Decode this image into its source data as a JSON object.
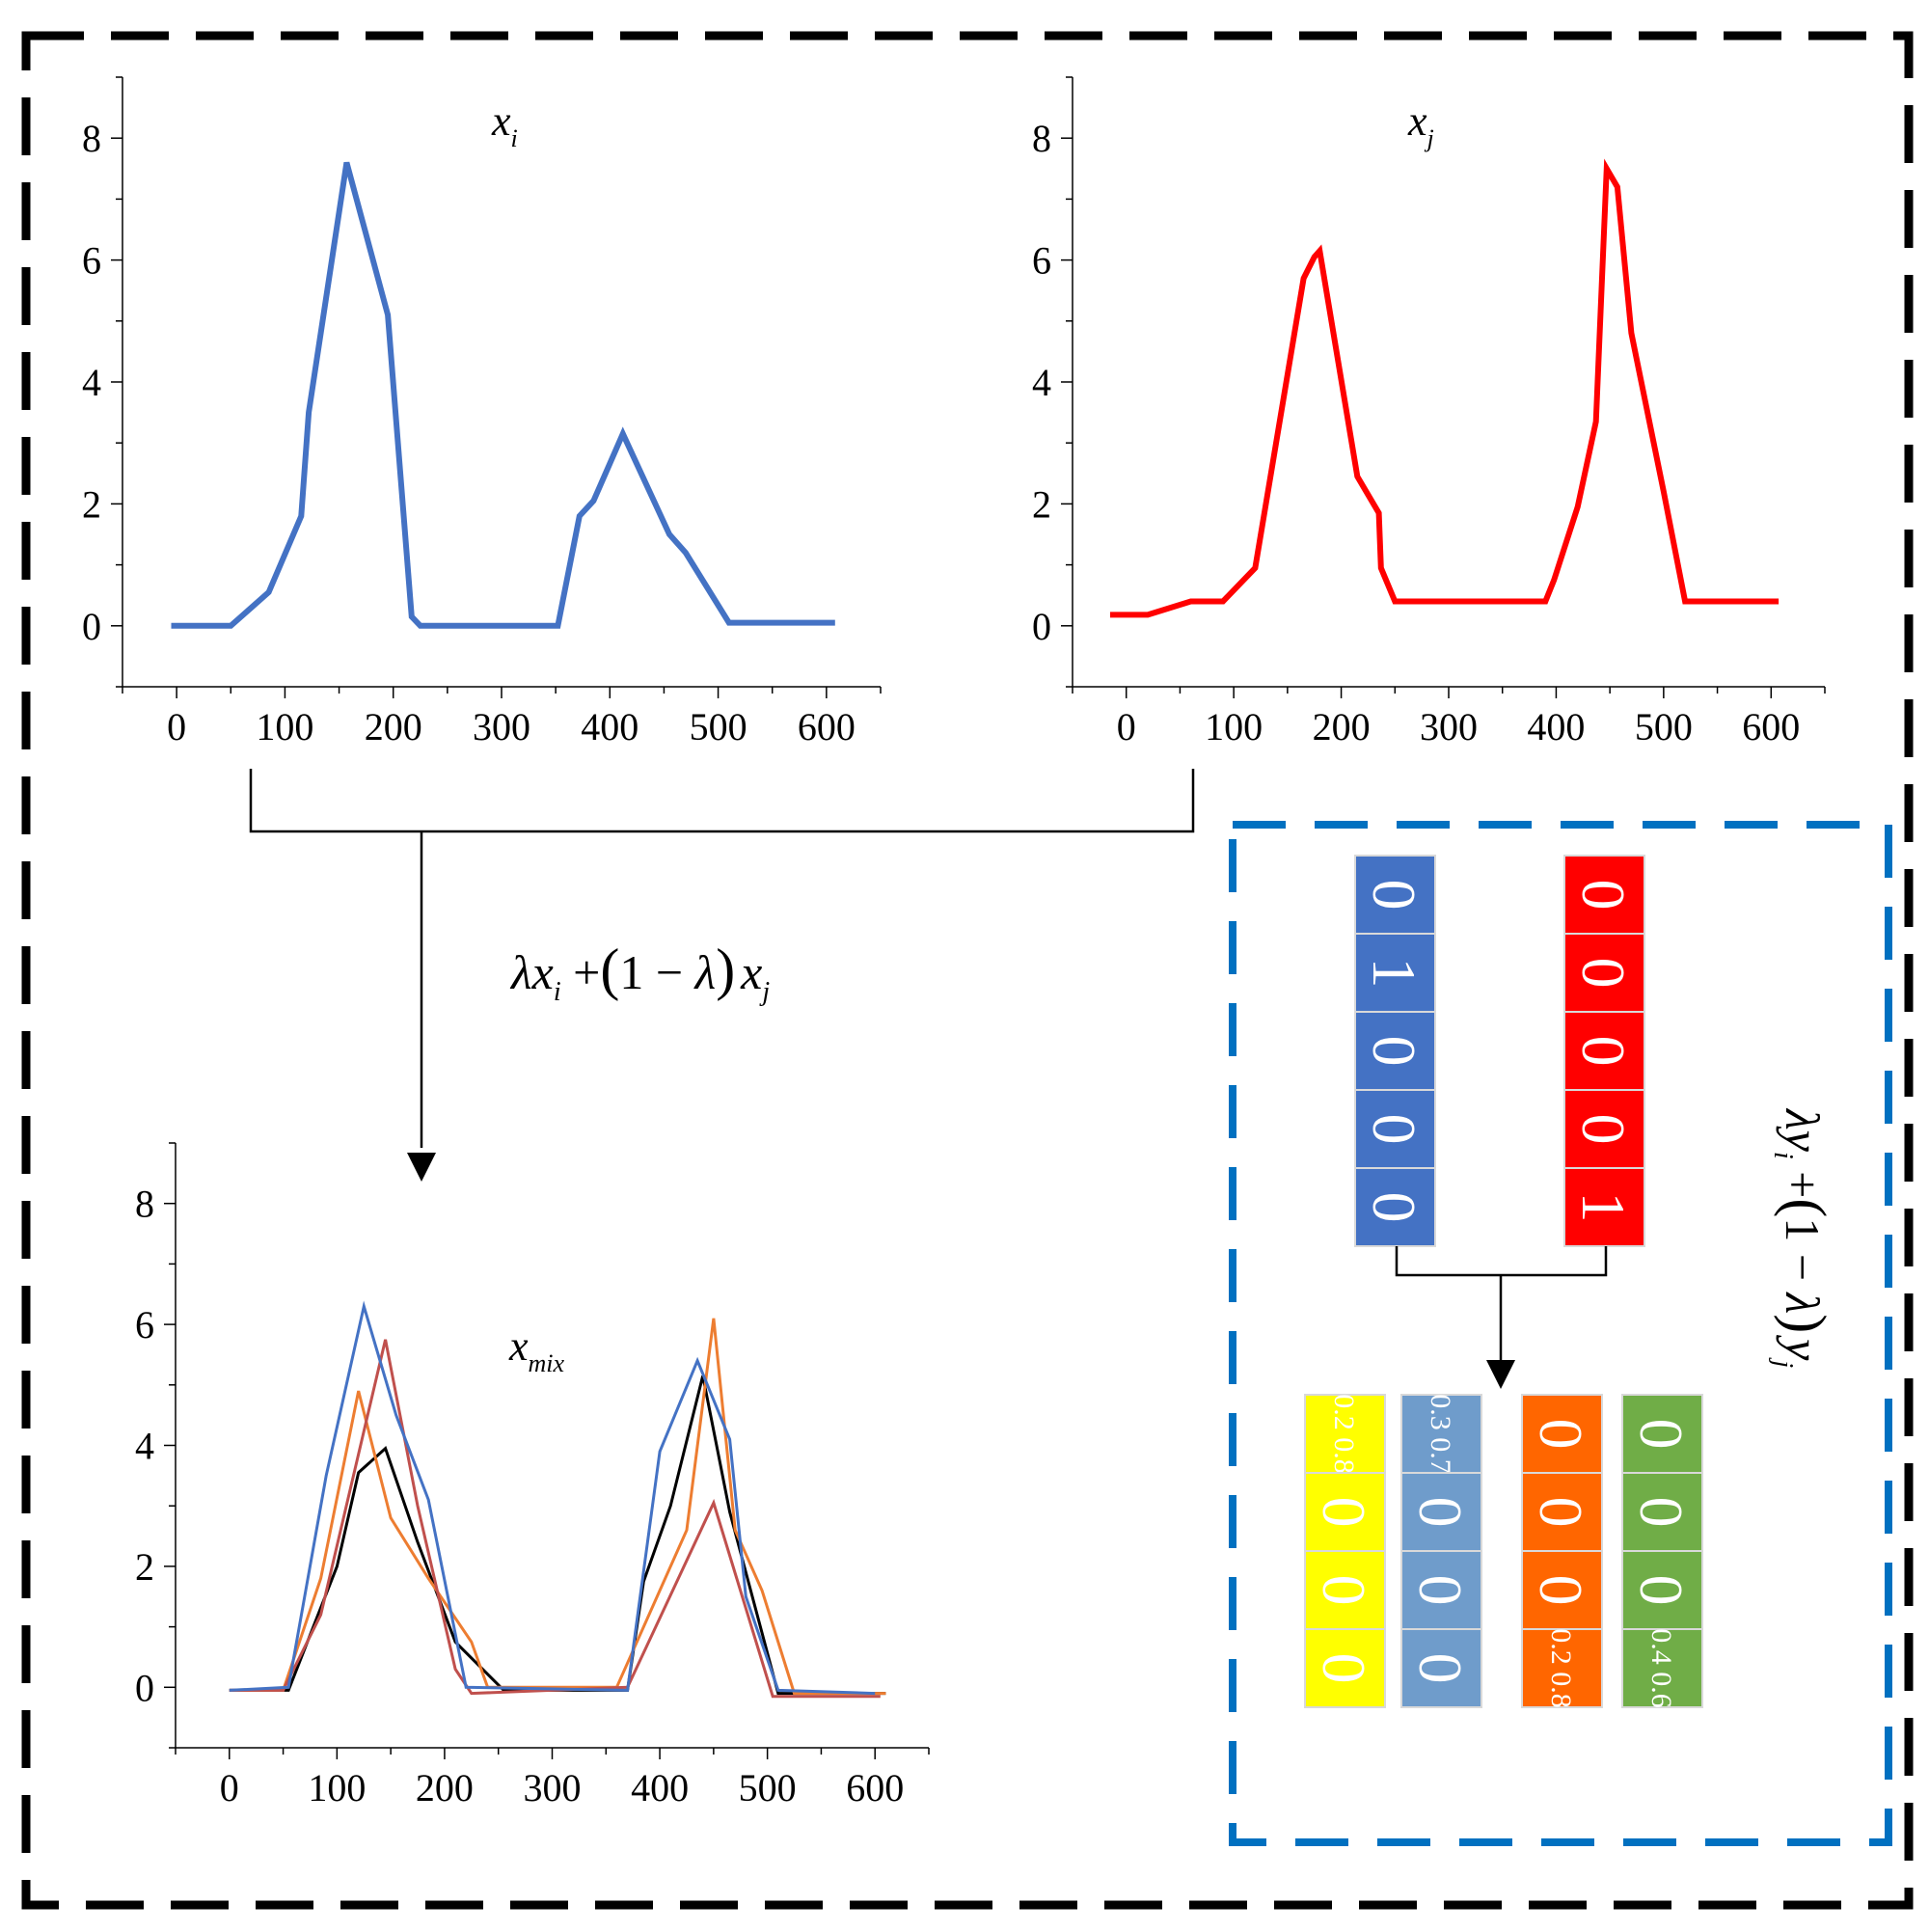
{
  "charts": [
    {
      "id": "xi",
      "title_main": "x",
      "title_sub": "i",
      "x_ticks": [
        "0",
        "100",
        "200",
        "300",
        "400",
        "500",
        "600"
      ],
      "y_ticks": [
        "0",
        "2",
        "4",
        "6",
        "8"
      ],
      "xlim": [
        -50,
        650
      ],
      "ylim": [
        -1,
        9
      ],
      "series": [
        {
          "name": "x_i",
          "color": "#4472C4",
          "width": 6,
          "points": [
            [
              -5,
              0
            ],
            [
              50,
              0
            ],
            [
              85,
              0.55
            ],
            [
              115,
              1.8
            ],
            [
              122,
              3.5
            ],
            [
              157,
              7.6
            ],
            [
              195,
              5.1
            ],
            [
              217,
              0.15
            ],
            [
              225,
              0
            ],
            [
              352,
              0
            ],
            [
              372,
              1.8
            ],
            [
              385,
              2.05
            ],
            [
              412,
              3.15
            ],
            [
              455,
              1.5
            ],
            [
              470,
              1.2
            ],
            [
              510,
              0.05
            ],
            [
              608,
              0.05
            ]
          ]
        }
      ]
    },
    {
      "id": "xj",
      "title_main": "x",
      "title_sub": "j",
      "x_ticks": [
        "0",
        "100",
        "200",
        "300",
        "400",
        "500",
        "600"
      ],
      "y_ticks": [
        "0",
        "2",
        "4",
        "6",
        "8"
      ],
      "xlim": [
        -50,
        650
      ],
      "ylim": [
        -1,
        9
      ],
      "series": [
        {
          "name": "x_j",
          "color": "#FF0000",
          "width": 6,
          "points": [
            [
              -15,
              0.18
            ],
            [
              20,
              0.18
            ],
            [
              60,
              0.4
            ],
            [
              90,
              0.4
            ],
            [
              120,
              0.95
            ],
            [
              165,
              5.7
            ],
            [
              175,
              6.05
            ],
            [
              180,
              6.15
            ],
            [
              215,
              2.45
            ],
            [
              235,
              1.85
            ],
            [
              237,
              0.95
            ],
            [
              250,
              0.4
            ],
            [
              390,
              0.4
            ],
            [
              398,
              0.75
            ],
            [
              420,
              1.95
            ],
            [
              437,
              3.35
            ],
            [
              447,
              7.5
            ],
            [
              457,
              7.2
            ],
            [
              470,
              4.8
            ],
            [
              500,
              2.2
            ],
            [
              520,
              0.4
            ],
            [
              607,
              0.4
            ]
          ]
        }
      ]
    },
    {
      "id": "xmix",
      "title_main": "x",
      "title_sub": "mix",
      "x_ticks": [
        "0",
        "100",
        "200",
        "300",
        "400",
        "500",
        "600"
      ],
      "y_ticks": [
        "0",
        "2",
        "4",
        "6",
        "8"
      ],
      "xlim": [
        -50,
        650
      ],
      "ylim": [
        -1,
        9
      ],
      "series": [
        {
          "name": "mix-black",
          "color": "#000000",
          "width": 3,
          "points": [
            [
              0,
              -0.05
            ],
            [
              55,
              -0.05
            ],
            [
              100,
              2.0
            ],
            [
              120,
              3.55
            ],
            [
              145,
              3.95
            ],
            [
              175,
              2.4
            ],
            [
              210,
              0.75
            ],
            [
              255,
              -0.05
            ],
            [
              370,
              -0.05
            ],
            [
              385,
              1.75
            ],
            [
              410,
              3.0
            ],
            [
              440,
              5.15
            ],
            [
              465,
              2.9
            ],
            [
              510,
              -0.1
            ],
            [
              610,
              -0.1
            ]
          ]
        },
        {
          "name": "mix-orange",
          "color": "#ED7D31",
          "width": 3,
          "points": [
            [
              0,
              -0.05
            ],
            [
              50,
              -0.05
            ],
            [
              85,
              1.8
            ],
            [
              120,
              4.9
            ],
            [
              150,
              2.8
            ],
            [
              185,
              1.8
            ],
            [
              225,
              0.75
            ],
            [
              240,
              0
            ],
            [
              360,
              0
            ],
            [
              425,
              2.6
            ],
            [
              450,
              6.1
            ],
            [
              470,
              2.6
            ],
            [
              495,
              1.6
            ],
            [
              525,
              -0.1
            ],
            [
              610,
              -0.1
            ]
          ]
        },
        {
          "name": "mix-red",
          "color": "#C0504D",
          "width": 3,
          "points": [
            [
              0,
              -0.05
            ],
            [
              50,
              -0.05
            ],
            [
              85,
              1.2
            ],
            [
              145,
              5.75
            ],
            [
              175,
              3.0
            ],
            [
              210,
              0.3
            ],
            [
              225,
              -0.1
            ],
            [
              370,
              0
            ],
            [
              450,
              3.05
            ],
            [
              505,
              -0.15
            ],
            [
              605,
              -0.15
            ]
          ]
        },
        {
          "name": "mix-blue",
          "color": "#4472C4",
          "width": 3,
          "points": [
            [
              0,
              -0.05
            ],
            [
              55,
              0.0
            ],
            [
              90,
              3.5
            ],
            [
              125,
              6.3
            ],
            [
              155,
              4.5
            ],
            [
              185,
              3.1
            ],
            [
              220,
              0
            ],
            [
              370,
              -0.05
            ],
            [
              400,
              3.9
            ],
            [
              435,
              5.4
            ],
            [
              465,
              4.1
            ],
            [
              480,
              1.5
            ],
            [
              510,
              -0.05
            ],
            [
              600,
              -0.1
            ]
          ]
        }
      ]
    }
  ],
  "mix_formula": {
    "lam": "λ",
    "x": "x",
    "sub_i": "i",
    "plus": "+",
    "open": "(",
    "one_minus": "1 − ",
    "close": ")",
    "sub_j": "j"
  },
  "label_formula": {
    "lam": "λ",
    "y": "y",
    "sub_i": "i",
    "plus": "+",
    "open": "(",
    "one_minus": "1 − ",
    "close": ")",
    "sub_j": "j"
  },
  "label_vectors": {
    "y_i": {
      "color": "#4472C4",
      "cells": [
        "0",
        "1",
        "0",
        "0",
        "0"
      ]
    },
    "y_j": {
      "color": "#FF0000",
      "cells": [
        "0",
        "0",
        "0",
        "0",
        "1"
      ]
    }
  },
  "mixed_labels": [
    {
      "color": "#FFFF00",
      "cells": [
        "0.2 0.8",
        "0",
        "0",
        "0"
      ]
    },
    {
      "color": "#6F9CCB",
      "cells": [
        "0.3 0.7",
        "0",
        "0",
        "0"
      ]
    },
    {
      "color": "#FF6600",
      "cells": [
        "0",
        "0",
        "0",
        "0.2 0.8"
      ]
    },
    {
      "color": "#70AD47",
      "cells": [
        "0",
        "0",
        "0",
        "0.4 0.6"
      ]
    }
  ]
}
